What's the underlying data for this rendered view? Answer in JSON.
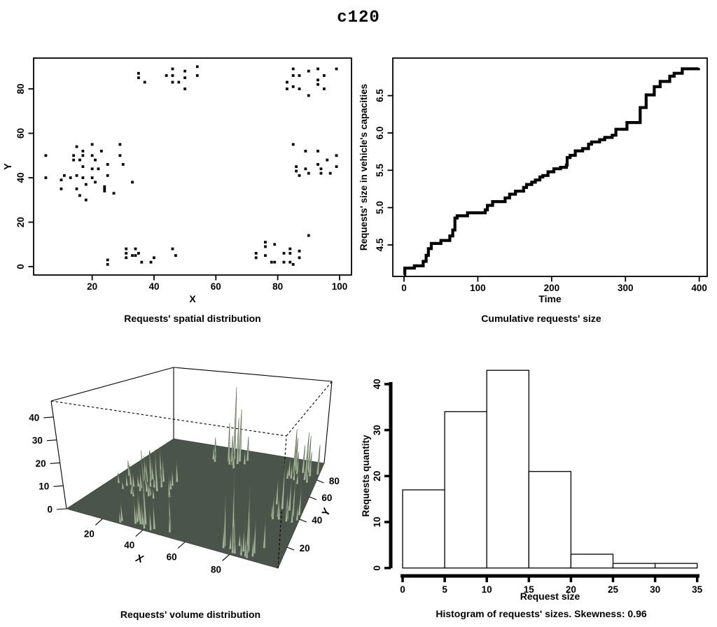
{
  "title": "c120",
  "colors": {
    "ink": "#000000",
    "background": "#ffffff",
    "floor": "#4a544b",
    "spike_fill": "#a7b6a0",
    "spike_edge": "#5a6851"
  },
  "chart_data": [
    {
      "type": "scatter",
      "title": "Requests' spatial distribution",
      "xlabel": "X",
      "ylabel": "Y",
      "xlim": [
        0,
        104
      ],
      "ylim": [
        0,
        92
      ],
      "xticks": [
        20,
        40,
        60,
        80,
        100
      ],
      "yticks": [
        0,
        20,
        40,
        60,
        80
      ],
      "marker": "filled-square",
      "points": [
        [
          35,
          87
        ],
        [
          35,
          85
        ],
        [
          37,
          83
        ],
        [
          44,
          86
        ],
        [
          46,
          89
        ],
        [
          46,
          86
        ],
        [
          46,
          83
        ],
        [
          48,
          83
        ],
        [
          50,
          88
        ],
        [
          50,
          85
        ],
        [
          50,
          80
        ],
        [
          54,
          90
        ],
        [
          54,
          86
        ],
        [
          83,
          83
        ],
        [
          83,
          80
        ],
        [
          85,
          89
        ],
        [
          85,
          86
        ],
        [
          85,
          81
        ],
        [
          87,
          86
        ],
        [
          87,
          80
        ],
        [
          90,
          88
        ],
        [
          90,
          77
        ],
        [
          93,
          89
        ],
        [
          93,
          84
        ],
        [
          93,
          82
        ],
        [
          95,
          86
        ],
        [
          95,
          80
        ],
        [
          99,
          89
        ],
        [
          5,
          50
        ],
        [
          5,
          40
        ],
        [
          10,
          39
        ],
        [
          10,
          35
        ],
        [
          11,
          41
        ],
        [
          13,
          40
        ],
        [
          14,
          50
        ],
        [
          14,
          48
        ],
        [
          15,
          54
        ],
        [
          15,
          41
        ],
        [
          15,
          35
        ],
        [
          16,
          48
        ],
        [
          16,
          32
        ],
        [
          17,
          52
        ],
        [
          17,
          50
        ],
        [
          17,
          45
        ],
        [
          17,
          40
        ],
        [
          18,
          37
        ],
        [
          18,
          30
        ],
        [
          20,
          55
        ],
        [
          20,
          50
        ],
        [
          20,
          44
        ],
        [
          20,
          40
        ],
        [
          21,
          48
        ],
        [
          21,
          38
        ],
        [
          22,
          44
        ],
        [
          23,
          52
        ],
        [
          24,
          36
        ],
        [
          24,
          35
        ],
        [
          24,
          34
        ],
        [
          25,
          46
        ],
        [
          25,
          41
        ],
        [
          27,
          33
        ],
        [
          29,
          55
        ],
        [
          29,
          50
        ],
        [
          30,
          46
        ],
        [
          33,
          38
        ],
        [
          85,
          55
        ],
        [
          86,
          45
        ],
        [
          86,
          43
        ],
        [
          87,
          41
        ],
        [
          89,
          52
        ],
        [
          89,
          44
        ],
        [
          90,
          42
        ],
        [
          93,
          52
        ],
        [
          93,
          46
        ],
        [
          94,
          44
        ],
        [
          94,
          42
        ],
        [
          96,
          48
        ],
        [
          97,
          42
        ],
        [
          99,
          50
        ],
        [
          99,
          45
        ],
        [
          25,
          3
        ],
        [
          25,
          1
        ],
        [
          31,
          8
        ],
        [
          31,
          6
        ],
        [
          31,
          4
        ],
        [
          34,
          8
        ],
        [
          34,
          5
        ],
        [
          35,
          6
        ],
        [
          36,
          2
        ],
        [
          39,
          2
        ],
        [
          40,
          4
        ],
        [
          46,
          8
        ],
        [
          47,
          5
        ],
        [
          33,
          5
        ],
        [
          73,
          6
        ],
        [
          73,
          4
        ],
        [
          76,
          11
        ],
        [
          76,
          9
        ],
        [
          76,
          5
        ],
        [
          78,
          2
        ],
        [
          79,
          10
        ],
        [
          79,
          2
        ],
        [
          82,
          6
        ],
        [
          82,
          2
        ],
        [
          84,
          8
        ],
        [
          84,
          6
        ],
        [
          84,
          2
        ],
        [
          85,
          1
        ],
        [
          87,
          7
        ],
        [
          87,
          4
        ],
        [
          90,
          14
        ]
      ]
    },
    {
      "type": "line",
      "subtype": "step",
      "title": "Cumulative requests' size",
      "xlabel": "Time",
      "ylabel": "Requests' size in vehicle's capacities",
      "xlim": [
        0,
        410
      ],
      "ylim": [
        4.05,
        6.95
      ],
      "xticks": [
        0,
        100,
        200,
        300,
        400
      ],
      "yticks": [
        4.5,
        5.0,
        5.5,
        6.0,
        6.5
      ],
      "ytick_labels": [
        "4.5",
        "5.0",
        "5.5",
        "6.0",
        "6.5"
      ],
      "points": [
        [
          0,
          4.1
        ],
        [
          1,
          4.19
        ],
        [
          14,
          4.22
        ],
        [
          26,
          4.28
        ],
        [
          30,
          4.36
        ],
        [
          33,
          4.45
        ],
        [
          37,
          4.52
        ],
        [
          50,
          4.56
        ],
        [
          62,
          4.62
        ],
        [
          66,
          4.7
        ],
        [
          69,
          4.86
        ],
        [
          72,
          4.89
        ],
        [
          86,
          4.93
        ],
        [
          110,
          4.97
        ],
        [
          113,
          5.03
        ],
        [
          120,
          5.08
        ],
        [
          137,
          5.13
        ],
        [
          143,
          5.18
        ],
        [
          151,
          5.22
        ],
        [
          162,
          5.27
        ],
        [
          166,
          5.31
        ],
        [
          173,
          5.34
        ],
        [
          178,
          5.37
        ],
        [
          184,
          5.41
        ],
        [
          188,
          5.43
        ],
        [
          195,
          5.48
        ],
        [
          203,
          5.52
        ],
        [
          212,
          5.54
        ],
        [
          220,
          5.57
        ],
        [
          221,
          5.67
        ],
        [
          225,
          5.7
        ],
        [
          232,
          5.76
        ],
        [
          242,
          5.79
        ],
        [
          250,
          5.85
        ],
        [
          254,
          5.88
        ],
        [
          265,
          5.91
        ],
        [
          272,
          5.94
        ],
        [
          282,
          5.97
        ],
        [
          287,
          6.05
        ],
        [
          302,
          6.14
        ],
        [
          320,
          6.34
        ],
        [
          328,
          6.51
        ],
        [
          339,
          6.62
        ],
        [
          347,
          6.69
        ],
        [
          360,
          6.76
        ],
        [
          366,
          6.8
        ],
        [
          377,
          6.86
        ],
        [
          399,
          6.87
        ]
      ]
    },
    {
      "type": "surface3d",
      "title": "Requests' volume distribution",
      "xlabel": "X",
      "ylabel": "Y",
      "xticks": [
        20,
        40,
        60,
        80
      ],
      "yticks": [
        20,
        40,
        60,
        80
      ],
      "zticks": [
        0,
        10,
        20,
        30,
        40
      ],
      "zlim": [
        0,
        47
      ],
      "spike_bases": "same x,y as scatter panel points",
      "heights": [
        12,
        8,
        6,
        22,
        42,
        15,
        9,
        7,
        30,
        26,
        10,
        14,
        8,
        10,
        6,
        18,
        24,
        8,
        12,
        7,
        15,
        6,
        20,
        24,
        9,
        13,
        7,
        16,
        8,
        5,
        6,
        4,
        10,
        7,
        12,
        9,
        14,
        6,
        5,
        11,
        4,
        8,
        15,
        6,
        9,
        5,
        4,
        16,
        12,
        7,
        10,
        5,
        8,
        6,
        13,
        4,
        5,
        7,
        9,
        20,
        5,
        11,
        8,
        6,
        10,
        12,
        8,
        6,
        10,
        22,
        9,
        7,
        14,
        11,
        8,
        6,
        16,
        9,
        12,
        7,
        8,
        5,
        12,
        7,
        10,
        30,
        9,
        22,
        6,
        8,
        11,
        14,
        7,
        12,
        20,
        8,
        12,
        28,
        6,
        10,
        5,
        7,
        9,
        6,
        15,
        25,
        8,
        5,
        13,
        7,
        11
      ]
    },
    {
      "type": "bar",
      "subtype": "histogram",
      "title": "Histogram of requests' sizes.  Skewness: 0.96",
      "xlabel": "Request size",
      "ylabel": "Requests quantity",
      "skewness": 0.96,
      "bin_edges": [
        0,
        5,
        10,
        15,
        20,
        25,
        30,
        35
      ],
      "counts": [
        17,
        34,
        43,
        21,
        3,
        1,
        1
      ],
      "xticks": [
        0,
        5,
        10,
        15,
        20,
        25,
        30,
        35
      ],
      "yticks": [
        0,
        10,
        20,
        30,
        40
      ]
    }
  ]
}
